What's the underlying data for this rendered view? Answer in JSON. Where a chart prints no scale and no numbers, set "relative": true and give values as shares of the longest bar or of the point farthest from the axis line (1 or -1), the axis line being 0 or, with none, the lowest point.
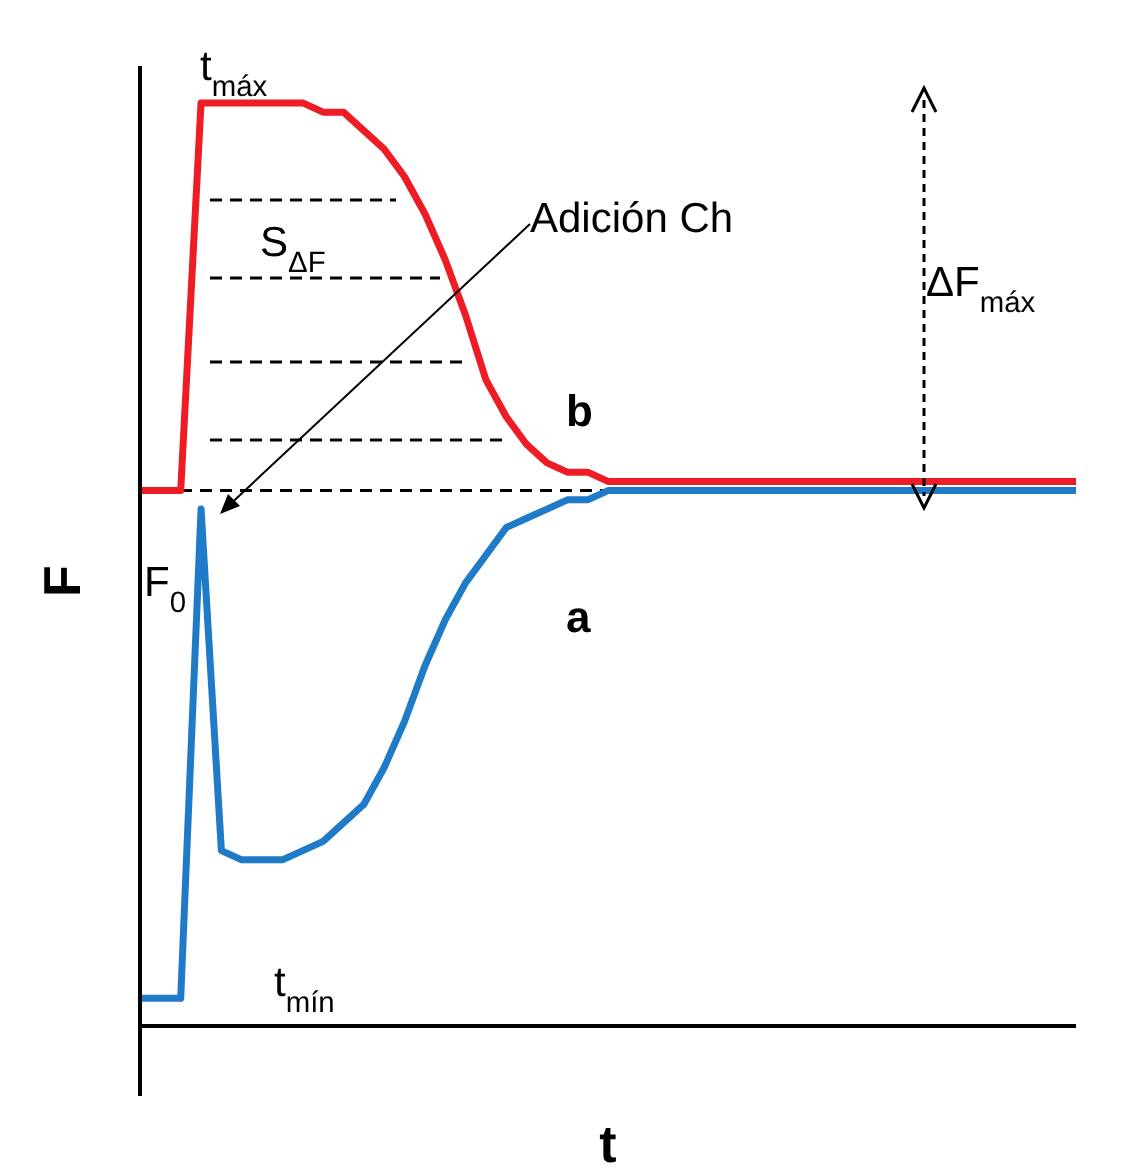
{
  "chart_data": {
    "type": "line",
    "relative": true,
    "xlabel": "t",
    "ylabel": "F",
    "legend": false,
    "grid": false,
    "marker": "none",
    "line_style": "solid",
    "categories": [
      null,
      null,
      null,
      null,
      null,
      null,
      null,
      null,
      null,
      null,
      null,
      null,
      null,
      null,
      null,
      null,
      null,
      null,
      null,
      null,
      null,
      null,
      null,
      null,
      null,
      null,
      null,
      null,
      null,
      null,
      null,
      null,
      null,
      null,
      null,
      null,
      null,
      null,
      null,
      null,
      null,
      null,
      null,
      null,
      null,
      null,
      null
    ],
    "series": [
      {
        "name": "b",
        "color": "#ee1c25",
        "values": [
          0.58,
          0.58,
          0.58,
          1.0,
          1.0,
          1.0,
          1.0,
          1.0,
          1.0,
          0.99,
          0.99,
          0.97,
          0.95,
          0.92,
          0.88,
          0.83,
          0.77,
          0.7,
          0.66,
          0.63,
          0.61,
          0.6,
          0.6,
          0.59,
          0.59,
          0.59,
          0.59,
          0.59,
          0.59,
          0.59,
          0.59,
          0.59,
          0.59,
          0.59,
          0.59,
          0.59,
          0.59,
          0.59,
          0.59,
          0.59,
          0.59,
          0.59,
          0.59,
          0.59,
          0.59,
          0.59,
          0.59
        ]
      },
      {
        "name": "a",
        "color": "#1f7bc8",
        "values": [
          0.03,
          0.03,
          0.03,
          0.56,
          0.19,
          0.18,
          0.18,
          0.18,
          0.19,
          0.2,
          0.22,
          0.24,
          0.28,
          0.33,
          0.39,
          0.44,
          0.48,
          0.51,
          0.54,
          0.55,
          0.56,
          0.57,
          0.57,
          0.58,
          0.58,
          0.58,
          0.58,
          0.58,
          0.58,
          0.58,
          0.58,
          0.58,
          0.58,
          0.58,
          0.58,
          0.58,
          0.58,
          0.58,
          0.58,
          0.58,
          0.58,
          0.58,
          0.58,
          0.58,
          0.58,
          0.58,
          0.58
        ]
      }
    ],
    "ref_lines": [
      {
        "axis": "y",
        "value": 0.58,
        "color": "#000000",
        "line_style": "dashed"
      }
    ],
    "annotations": [
      "t$_{máx}$",
      "S$_{ΔF}$",
      "Adición Ch",
      "ΔF$_{máx}$",
      "F$_{0}$",
      "t$_{mín}$"
    ]
  }
}
